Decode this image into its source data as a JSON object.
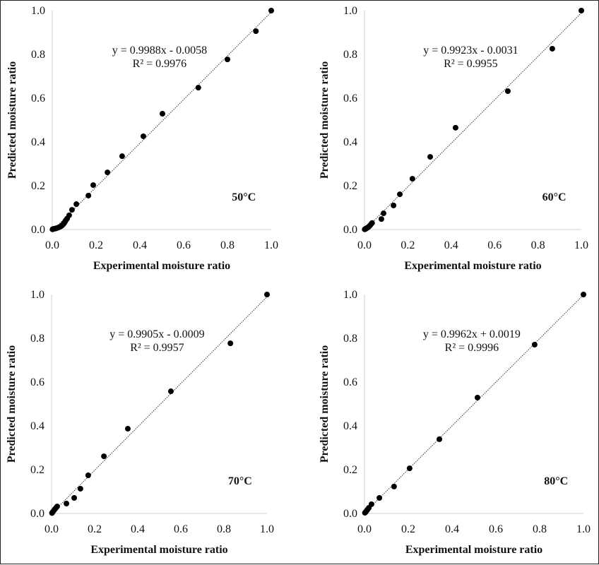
{
  "chart_data": [
    {
      "type": "scatter",
      "panel_label": "50°C",
      "xlabel": "Experimental moisture ratio",
      "ylabel": "Predicted moisture ratio",
      "xlim": [
        0,
        1.0
      ],
      "ylim": [
        0,
        1.0
      ],
      "xticks": [
        "0.0",
        "0.2",
        "0.4",
        "0.6",
        "0.8",
        "1.0"
      ],
      "yticks": [
        "0.0",
        "0.2",
        "0.4",
        "0.6",
        "0.8",
        "1.0"
      ],
      "equation": "y = 0.9988x - 0.0058",
      "r_squared": "R² = 0.9976",
      "trendline": {
        "slope": 0.9988,
        "intercept": -0.0058,
        "style": "dotted"
      },
      "grid": false,
      "points": [
        [
          1.0,
          1.0
        ],
        [
          0.93,
          0.906
        ],
        [
          0.8,
          0.777
        ],
        [
          0.667,
          0.648
        ],
        [
          0.503,
          0.529
        ],
        [
          0.416,
          0.426
        ],
        [
          0.319,
          0.335
        ],
        [
          0.252,
          0.261
        ],
        [
          0.187,
          0.203
        ],
        [
          0.165,
          0.155
        ],
        [
          0.11,
          0.116
        ],
        [
          0.09,
          0.09
        ],
        [
          0.077,
          0.065
        ],
        [
          0.068,
          0.05
        ],
        [
          0.062,
          0.042
        ],
        [
          0.058,
          0.035
        ],
        [
          0.054,
          0.029
        ],
        [
          0.05,
          0.024
        ],
        [
          0.045,
          0.019
        ],
        [
          0.04,
          0.015
        ],
        [
          0.034,
          0.012
        ],
        [
          0.028,
          0.009
        ],
        [
          0.022,
          0.007
        ],
        [
          0.016,
          0.005
        ],
        [
          0.011,
          0.004
        ],
        [
          0.006,
          0.003
        ],
        [
          0.003,
          0.002
        ],
        [
          0.001,
          0.001
        ]
      ]
    },
    {
      "type": "scatter",
      "panel_label": "60°C",
      "xlabel": "Experimental moisture ratio",
      "ylabel": "Predicted moisture ratio",
      "xlim": [
        0,
        1.0
      ],
      "ylim": [
        0,
        1.0
      ],
      "xticks": [
        "0.0",
        "0.2",
        "0.4",
        "0.6",
        "0.8",
        "1.0"
      ],
      "yticks": [
        "0.0",
        "0.2",
        "0.4",
        "0.6",
        "0.8",
        "1.0"
      ],
      "equation": "y = 0.9923x - 0.0031",
      "r_squared": "R² = 0.9955",
      "trendline": {
        "slope": 0.9923,
        "intercept": -0.0031,
        "style": "dotted"
      },
      "grid": false,
      "points": [
        [
          1.0,
          1.0
        ],
        [
          0.866,
          0.826
        ],
        [
          0.661,
          0.632
        ],
        [
          0.42,
          0.465
        ],
        [
          0.303,
          0.332
        ],
        [
          0.221,
          0.232
        ],
        [
          0.163,
          0.161
        ],
        [
          0.134,
          0.11
        ],
        [
          0.088,
          0.074
        ],
        [
          0.078,
          0.048
        ],
        [
          0.035,
          0.03
        ],
        [
          0.03,
          0.024
        ],
        [
          0.025,
          0.018
        ],
        [
          0.02,
          0.013
        ],
        [
          0.015,
          0.009
        ],
        [
          0.01,
          0.006
        ],
        [
          0.006,
          0.004
        ],
        [
          0.003,
          0.002
        ],
        [
          0.001,
          0.001
        ]
      ]
    },
    {
      "type": "scatter",
      "panel_label": "70°C",
      "xlabel": "Experimental moisture ratio",
      "ylabel": "Predicted moisture ratio",
      "xlim": [
        0,
        1.0
      ],
      "ylim": [
        0,
        1.0
      ],
      "xticks": [
        "0.0",
        "0.2",
        "0.4",
        "0.6",
        "0.8",
        "1.0"
      ],
      "yticks": [
        "0.0",
        "0.2",
        "0.4",
        "0.6",
        "0.8",
        "1.0"
      ],
      "equation": "y = 0.9905x - 0.0009",
      "r_squared": "R² = 0.9957",
      "trendline": {
        "slope": 0.9905,
        "intercept": -0.0009,
        "style": "dotted"
      },
      "grid": false,
      "points": [
        [
          1.0,
          1.0
        ],
        [
          0.83,
          0.777
        ],
        [
          0.554,
          0.558
        ],
        [
          0.354,
          0.387
        ],
        [
          0.243,
          0.261
        ],
        [
          0.17,
          0.174
        ],
        [
          0.134,
          0.113
        ],
        [
          0.105,
          0.071
        ],
        [
          0.069,
          0.045
        ],
        [
          0.026,
          0.032
        ],
        [
          0.02,
          0.025
        ],
        [
          0.014,
          0.018
        ],
        [
          0.009,
          0.011
        ],
        [
          0.005,
          0.006
        ],
        [
          0.002,
          0.002
        ]
      ]
    },
    {
      "type": "scatter",
      "panel_label": "80°C",
      "xlabel": "Experimental moisture ratio",
      "ylabel": "Predicted moisture ratio",
      "xlim": [
        0,
        1.0
      ],
      "ylim": [
        0,
        1.0
      ],
      "xticks": [
        "0.0",
        "0.2",
        "0.4",
        "0.6",
        "0.8",
        "1.0"
      ],
      "yticks": [
        "0.0",
        "0.2",
        "0.4",
        "0.6",
        "0.8",
        "1.0"
      ],
      "equation": "y = 0.9962x + 0.0019",
      "r_squared": "R² = 0.9996",
      "trendline": {
        "slope": 0.9962,
        "intercept": 0.0019,
        "style": "dotted"
      },
      "grid": false,
      "points": [
        [
          1.0,
          1.0
        ],
        [
          0.777,
          0.771
        ],
        [
          0.516,
          0.529
        ],
        [
          0.342,
          0.339
        ],
        [
          0.206,
          0.206
        ],
        [
          0.135,
          0.123
        ],
        [
          0.068,
          0.071
        ],
        [
          0.032,
          0.042
        ],
        [
          0.02,
          0.026
        ],
        [
          0.014,
          0.018
        ],
        [
          0.009,
          0.011
        ],
        [
          0.005,
          0.006
        ],
        [
          0.002,
          0.003
        ]
      ]
    }
  ],
  "colors": {
    "marker": "#000000",
    "axis": "#d0d0d0",
    "trendline": "#333333",
    "text": "#111111"
  }
}
